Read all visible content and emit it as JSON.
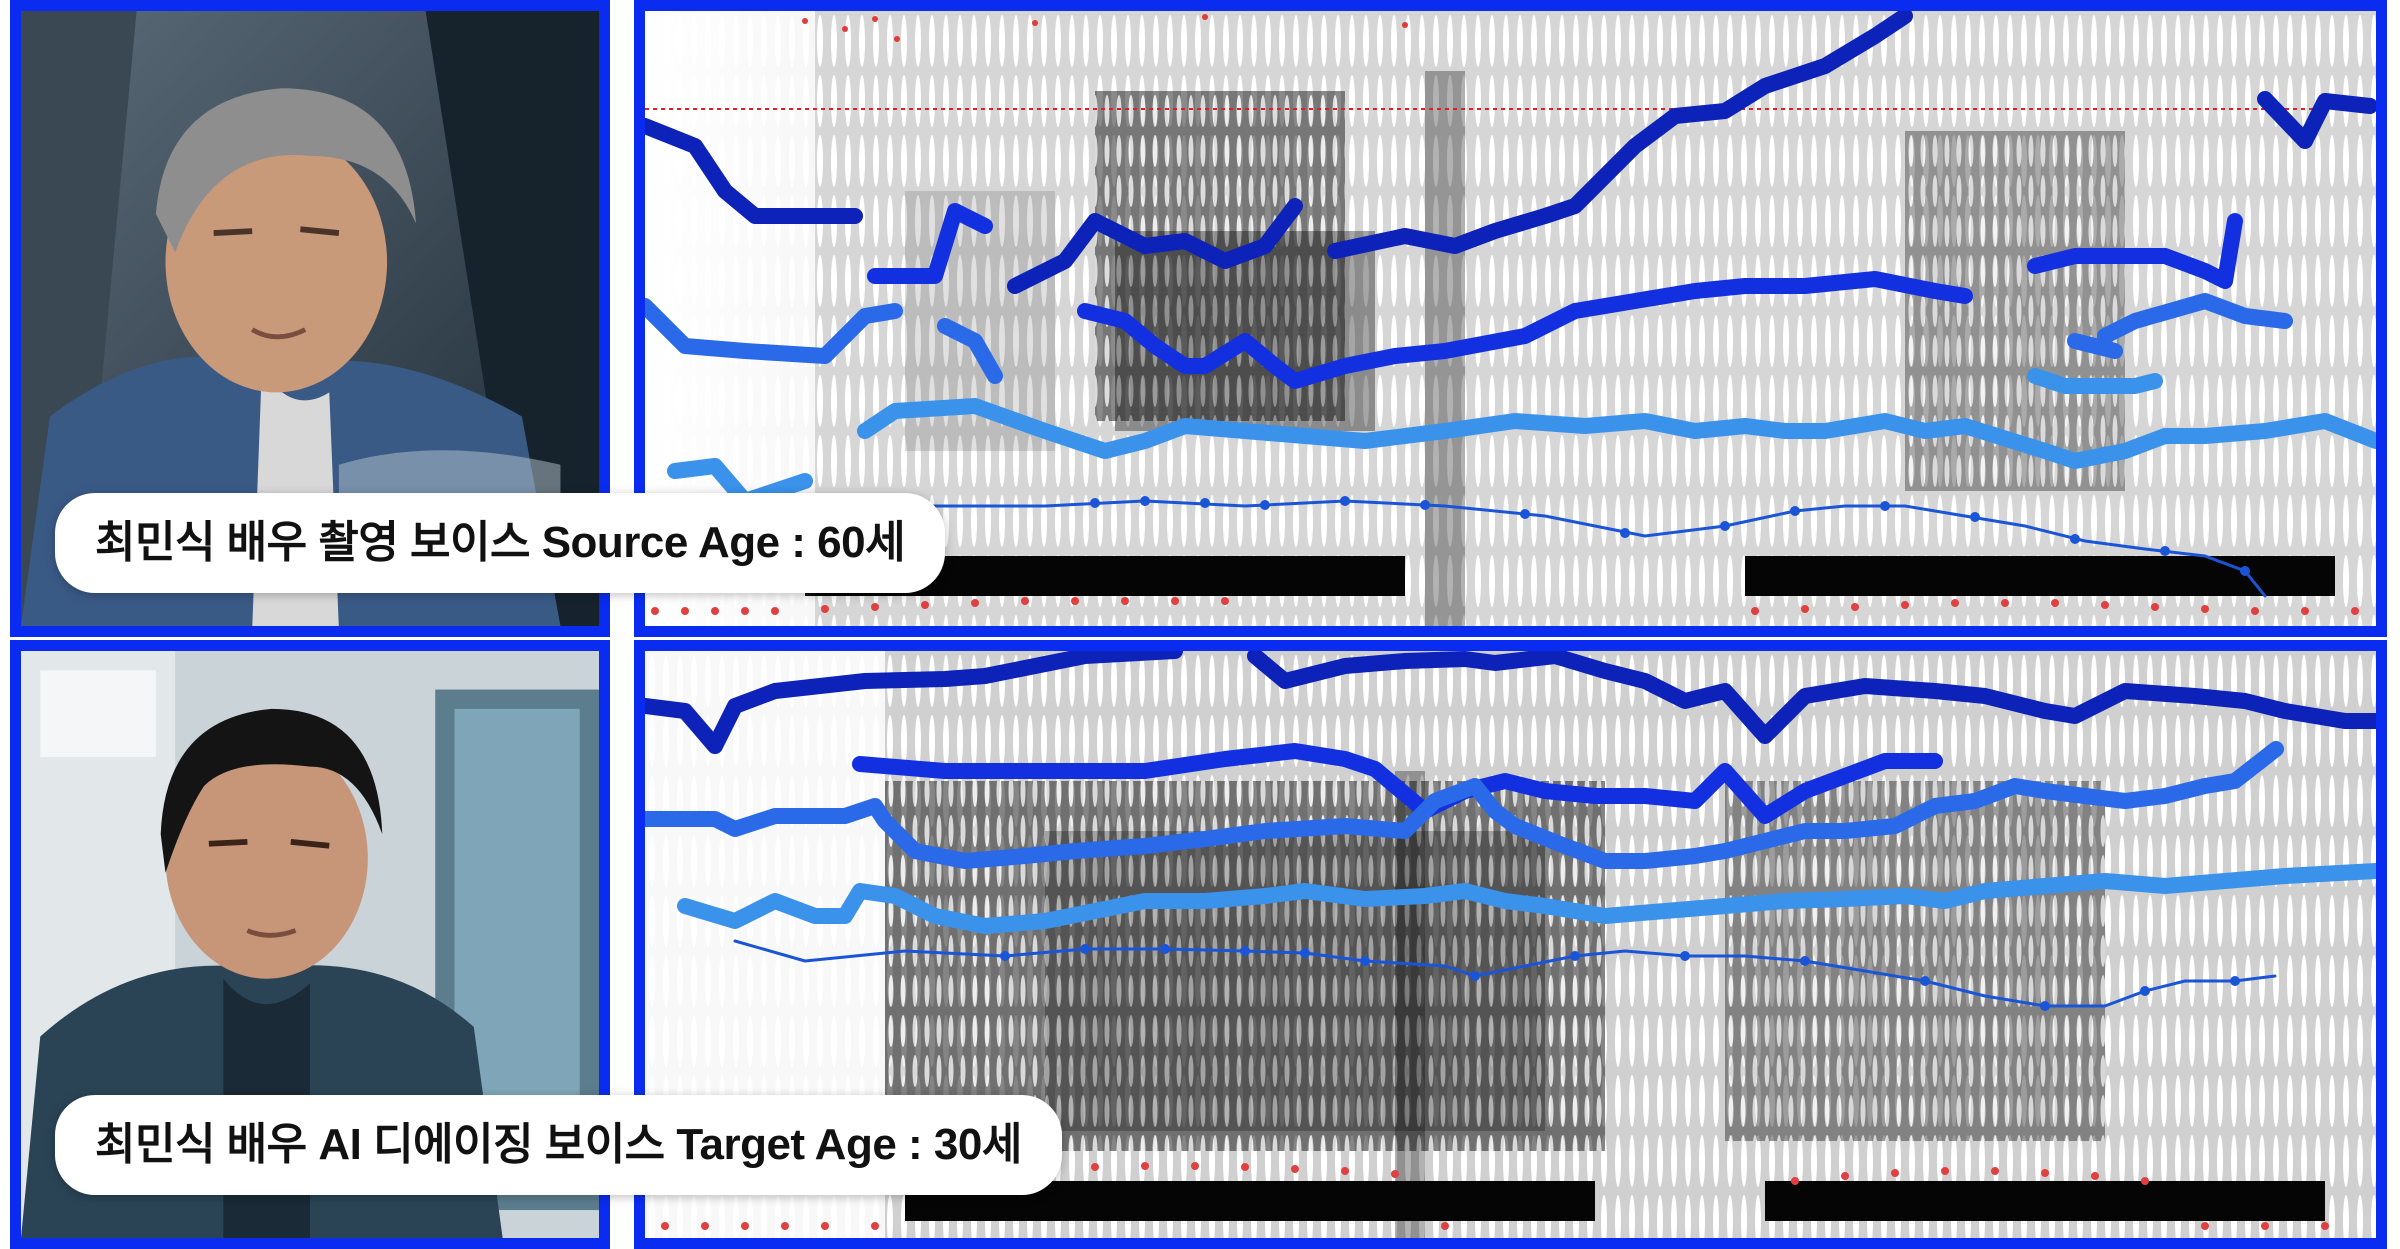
{
  "frame_color": "#0a2cf0",
  "track_colors": [
    "#0c22b8",
    "#1230e0",
    "#2a6ae8",
    "#3a92ea",
    "#1a55d8"
  ],
  "source": {
    "caption": "최민식 배우 촬영 보이스 Source Age : 60세",
    "photo": "older-actor-portrait-in-car"
  },
  "target": {
    "caption": "최민식 배우 AI 디에이징 보이스 Target Age : 30세",
    "photo": "younger-actor-portrait-indoors"
  }
}
